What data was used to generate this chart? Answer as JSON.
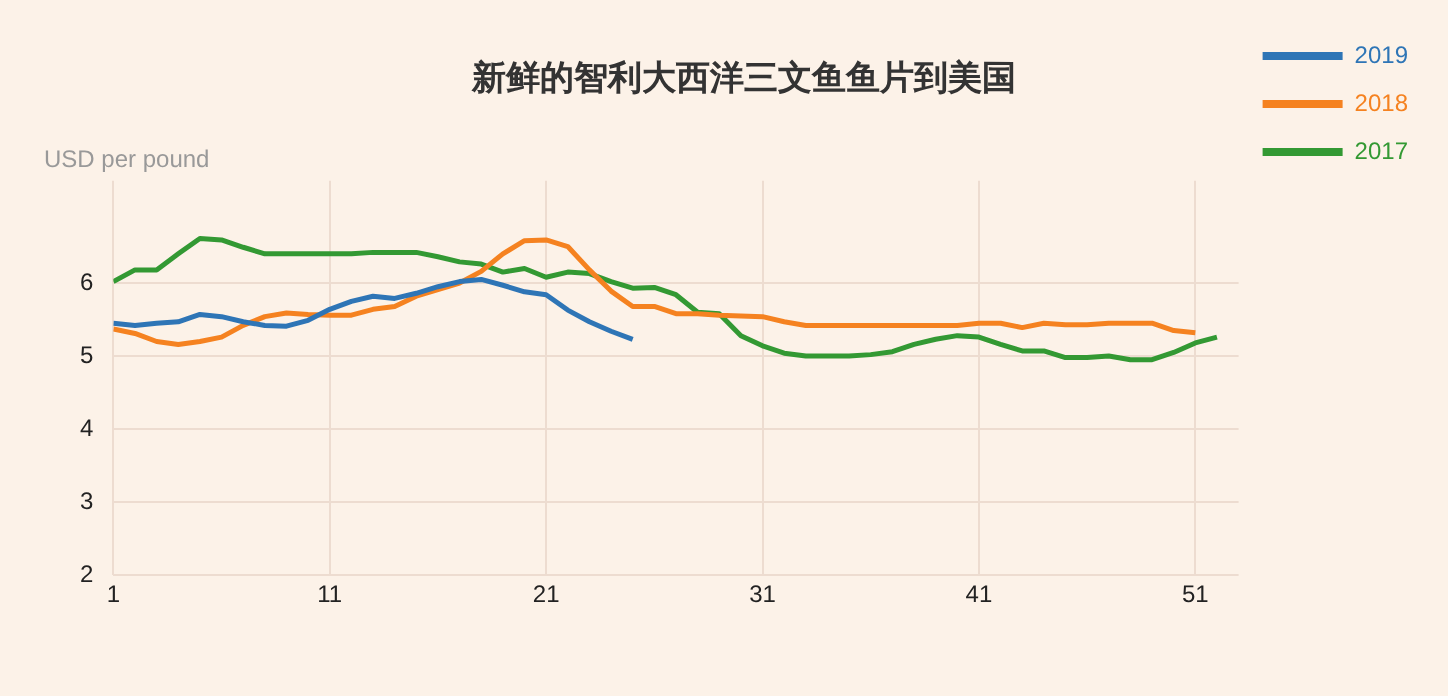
{
  "chart_data": {
    "type": "line",
    "title": "新鲜的智利大西洋三文鱼鱼片到美国",
    "ylabel": "USD per pound",
    "x": [
      1,
      2,
      3,
      4,
      5,
      6,
      7,
      8,
      9,
      10,
      11,
      12,
      13,
      14,
      15,
      16,
      17,
      18,
      19,
      20,
      21,
      22,
      23,
      24,
      25,
      26,
      27,
      28,
      29,
      30,
      31,
      32,
      33,
      34,
      35,
      36,
      37,
      38,
      39,
      40,
      41,
      42,
      43,
      44,
      45,
      46,
      47,
      48,
      49,
      50,
      51,
      52
    ],
    "series": [
      {
        "name": "2019",
        "color": "#2e75b6",
        "values": [
          5.45,
          5.42,
          5.45,
          5.47,
          5.57,
          5.54,
          5.47,
          5.42,
          5.41,
          5.49,
          5.64,
          5.75,
          5.82,
          5.79,
          5.86,
          5.95,
          6.02,
          6.05,
          5.97,
          5.88,
          5.84,
          5.63,
          5.47,
          5.34,
          5.23,
          null,
          null,
          null,
          null,
          null,
          null,
          null,
          null,
          null,
          null,
          null,
          null,
          null,
          null,
          null,
          null,
          null,
          null,
          null,
          null,
          null,
          null,
          null,
          null,
          null,
          null,
          null
        ]
      },
      {
        "name": "2018",
        "color": "#f58220",
        "values": [
          5.37,
          5.31,
          5.2,
          5.16,
          5.2,
          5.26,
          5.42,
          5.54,
          5.59,
          5.57,
          5.56,
          5.56,
          5.64,
          5.68,
          5.82,
          5.91,
          6.0,
          6.16,
          6.4,
          6.58,
          6.59,
          6.5,
          6.18,
          5.89,
          5.68,
          5.68,
          5.58,
          5.58,
          5.56,
          5.55,
          5.54,
          5.47,
          5.42,
          5.42,
          5.42,
          5.42,
          5.42,
          5.42,
          5.42,
          5.42,
          5.45,
          5.45,
          5.39,
          5.45,
          5.43,
          5.43,
          5.45,
          5.45,
          5.45,
          5.35,
          5.32,
          null
        ]
      },
      {
        "name": "2017",
        "color": "#339933",
        "values": [
          6.02,
          6.18,
          6.18,
          6.4,
          6.61,
          6.59,
          6.49,
          6.4,
          6.4,
          6.4,
          6.4,
          6.4,
          6.42,
          6.42,
          6.42,
          6.36,
          6.29,
          6.26,
          6.15,
          6.2,
          6.08,
          6.15,
          6.13,
          6.02,
          5.93,
          5.94,
          5.84,
          5.6,
          5.58,
          5.28,
          5.14,
          5.04,
          5.0,
          5.0,
          5.0,
          5.02,
          5.06,
          5.16,
          5.23,
          5.28,
          5.26,
          5.16,
          5.07,
          5.07,
          4.98,
          4.98,
          5.0,
          4.95,
          4.95,
          5.05,
          5.18,
          5.26
        ]
      }
    ],
    "xlim": [
      1,
      53
    ],
    "xticks": [
      1,
      11,
      21,
      31,
      41,
      51
    ],
    "ylim": [
      2,
      7.4
    ],
    "yticks": [
      2,
      3,
      4,
      5,
      6
    ],
    "grid": true,
    "legend": "right",
    "marker": "none",
    "line_style": "solid"
  }
}
